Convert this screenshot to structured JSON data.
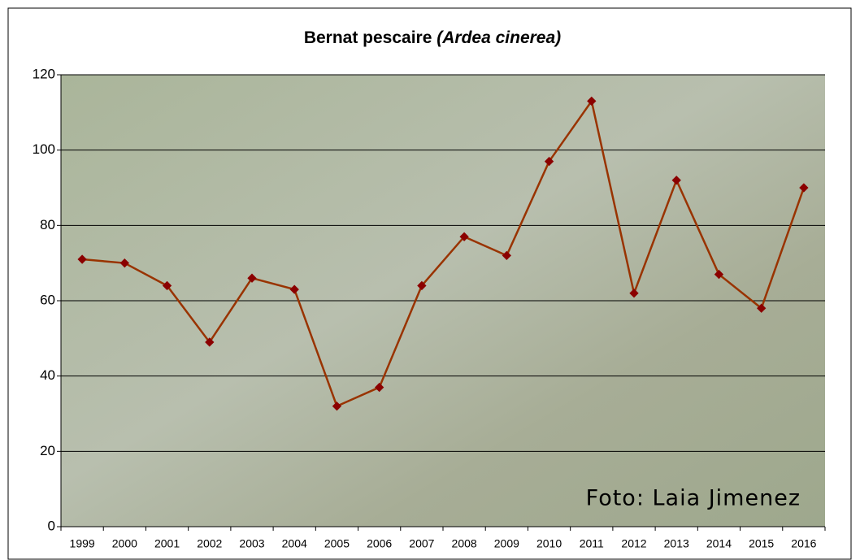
{
  "chart_data": {
    "type": "line",
    "title": "Bernat pescaire",
    "title_species": "(Ardea cinerea)",
    "annotation": "Foto: Laia Jimenez",
    "categories": [
      "1999",
      "2000",
      "2001",
      "2002",
      "2003",
      "2004",
      "2005",
      "2006",
      "2007",
      "2008",
      "2009",
      "2010",
      "2011",
      "2012",
      "2013",
      "2014",
      "2015",
      "2016"
    ],
    "series": [
      {
        "color": "#993300",
        "values": [
          71,
          70,
          64,
          49,
          66,
          63,
          32,
          37,
          64,
          77,
          72,
          97,
          113,
          62,
          92,
          67,
          58,
          90
        ]
      }
    ],
    "ylim": [
      0,
      120
    ],
    "yticks": [
      0,
      20,
      40,
      60,
      80,
      100,
      120
    ],
    "grid": true
  }
}
